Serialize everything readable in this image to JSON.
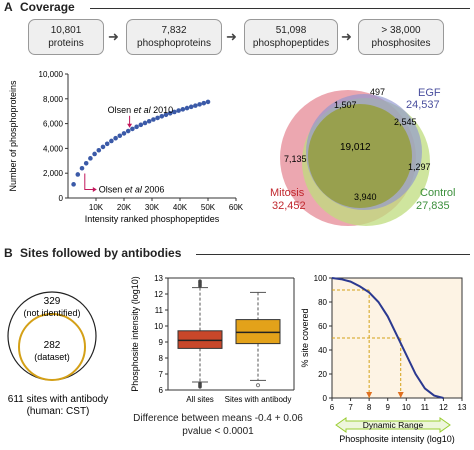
{
  "sectionA": {
    "letter": "A",
    "title": "Coverage"
  },
  "sectionB": {
    "letter": "B",
    "title": "Sites followed by antibodies"
  },
  "flow": [
    {
      "value": "10,801",
      "label": "proteins"
    },
    {
      "value": "7,832",
      "label": "phosphoproteins"
    },
    {
      "value": "51,098",
      "label": "phosphopeptides"
    },
    {
      "value": "> 38,000",
      "label": "phosphosites"
    }
  ],
  "flow_arrow": "➜",
  "venn": {
    "sets": [
      {
        "name": "EGF",
        "total": "24,537",
        "color": "#4a4f9e"
      },
      {
        "name": "Mitosis",
        "total": "32,452",
        "color": "#c0272d"
      },
      {
        "name": "Control",
        "total": "27,835",
        "color": "#3b8f3b"
      }
    ],
    "regions": {
      "egf_only": "497",
      "mitosis_egf": "1,507",
      "egf_control": "2,545",
      "mitosis_only": "7,135",
      "all_three": "19,012",
      "control_only": "1,297",
      "mitosis_control": "3,940"
    }
  },
  "antibody_circles": {
    "outer_value": "329",
    "outer_label": "(not identified)",
    "inner_value": "282",
    "inner_label": "(dataset)",
    "caption1": "611 sites with antibody",
    "caption2": "(human: CST)"
  },
  "boxplot_stats": {
    "line1": "Difference between means -0.4 + 0.06",
    "line2": "pvalue < 0.0001"
  },
  "chart_data": [
    {
      "type": "scatter",
      "xlabel": "Intensity ranked phosphopeptides",
      "ylabel": "Number of phosphoproteins",
      "xlim": [
        0,
        60000
      ],
      "ylim": [
        0,
        10000
      ],
      "xticks": [
        {
          "v": 10000,
          "label": "10K"
        },
        {
          "v": 20000,
          "label": "20K"
        },
        {
          "v": 30000,
          "label": "30K"
        },
        {
          "v": 40000,
          "label": "40K"
        },
        {
          "v": 50000,
          "label": "50K"
        },
        {
          "v": 60000,
          "label": "60K"
        }
      ],
      "yticks": [
        {
          "v": 0,
          "label": "0"
        },
        {
          "v": 2000,
          "label": "2,000"
        },
        {
          "v": 4000,
          "label": "4,000"
        },
        {
          "v": 6000,
          "label": "6,000"
        },
        {
          "v": 8000,
          "label": "8,000"
        },
        {
          "v": 10000,
          "label": "10,000"
        }
      ],
      "x": [
        2000,
        3500,
        5000,
        6500,
        8000,
        9500,
        11000,
        12500,
        14000,
        15500,
        17000,
        18500,
        20000,
        21500,
        23000,
        24500,
        26000,
        27500,
        29000,
        30500,
        32000,
        33500,
        35000,
        36500,
        38000,
        39500,
        41000,
        42500,
        44000,
        45500,
        47000,
        48500,
        50000
      ],
      "y": [
        1100,
        1900,
        2400,
        2800,
        3200,
        3550,
        3850,
        4120,
        4370,
        4600,
        4820,
        5020,
        5210,
        5400,
        5570,
        5740,
        5900,
        6050,
        6190,
        6330,
        6460,
        6590,
        6710,
        6830,
        6940,
        7050,
        7150,
        7250,
        7350,
        7450,
        7550,
        7650,
        7750
      ],
      "annotations": [
        {
          "text_pre": "Olsen ",
          "text_em": "et al",
          "text_post": " 2010",
          "x": 22000,
          "y": 5500
        },
        {
          "text_pre": "Olsen ",
          "text_em": "et al",
          "text_post": " 2006",
          "x": 6000,
          "y": 2300
        }
      ]
    },
    {
      "type": "box",
      "ylabel": "Phosphosite intensity (log10)",
      "ylim": [
        6,
        13
      ],
      "yticks": [
        6,
        7,
        8,
        9,
        10,
        11,
        12,
        13
      ],
      "categories": [
        "All sites",
        "Sites with antibody"
      ],
      "boxes": [
        {
          "q1": 8.6,
          "median": 9.1,
          "q3": 9.7,
          "whisker_low": 6.5,
          "whisker_high": 12.4,
          "color": "#c8472a"
        },
        {
          "q1": 8.9,
          "median": 9.6,
          "q3": 10.4,
          "whisker_low": 6.6,
          "whisker_high": 12.1,
          "color": "#e3a21a"
        }
      ]
    },
    {
      "type": "line",
      "xlabel": "Phosphosite intensity (log10)",
      "ylabel": "% site covered",
      "xlim": [
        6,
        13
      ],
      "ylim": [
        0,
        100
      ],
      "xticks": [
        6,
        7,
        8,
        9,
        10,
        11,
        12,
        13
      ],
      "yticks": [
        0,
        20,
        40,
        60,
        80,
        100
      ],
      "x": [
        6.0,
        6.5,
        7.0,
        7.5,
        8.0,
        8.5,
        9.0,
        9.5,
        10.0,
        10.5,
        11.0,
        11.5,
        12.0
      ],
      "y": [
        100,
        99,
        97,
        93,
        88,
        80,
        68,
        52,
        36,
        20,
        8,
        2,
        0
      ],
      "guides": [
        {
          "x": 8.0,
          "y": 90
        },
        {
          "x": 9.7,
          "y": 50
        }
      ],
      "dynamic_range_label": "Dynamic Range"
    }
  ]
}
